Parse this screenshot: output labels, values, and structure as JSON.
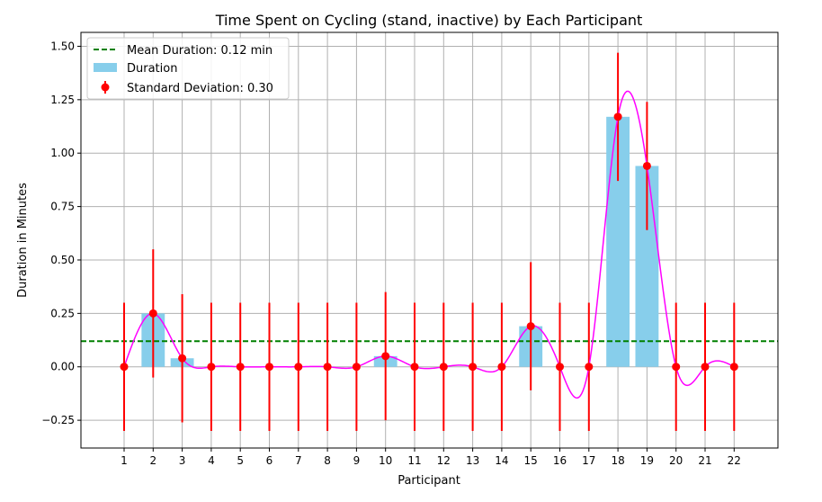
{
  "chart_data": {
    "type": "bar",
    "title": "Time Spent on Cycling (stand, inactive) by Each Participant",
    "xlabel": "Participant",
    "ylabel": "Duration in Minutes",
    "categories": [
      "1",
      "2",
      "3",
      "4",
      "5",
      "6",
      "7",
      "8",
      "9",
      "10",
      "11",
      "12",
      "13",
      "14",
      "15",
      "16",
      "17",
      "18",
      "19",
      "20",
      "21",
      "22"
    ],
    "series": [
      {
        "name": "Duration",
        "values": [
          0,
          0.25,
          0.04,
          0,
          0,
          0,
          0,
          0,
          0,
          0.05,
          0,
          0,
          0,
          0,
          0.19,
          0,
          0,
          1.17,
          0.94,
          0,
          0,
          0
        ],
        "color": "#87ceeb"
      }
    ],
    "error": {
      "value": 0.3,
      "color": "#ff0000"
    },
    "mean": {
      "value": 0.12,
      "color": "#008000"
    },
    "smooth_line_color": "#ff00ff",
    "ylim": [
      -0.38,
      1.565
    ],
    "yticks": [
      "−0.25",
      "0.00",
      "0.25",
      "0.50",
      "0.75",
      "1.00",
      "1.25",
      "1.50"
    ],
    "ytick_values": [
      -0.25,
      0,
      0.25,
      0.5,
      0.75,
      1.0,
      1.25,
      1.5
    ],
    "grid": true,
    "legend_position": "top-left",
    "legend": {
      "mean_label": "Mean Duration: 0.12 min",
      "bar_label": "Duration",
      "error_label": "Standard Deviation: 0.30"
    }
  }
}
